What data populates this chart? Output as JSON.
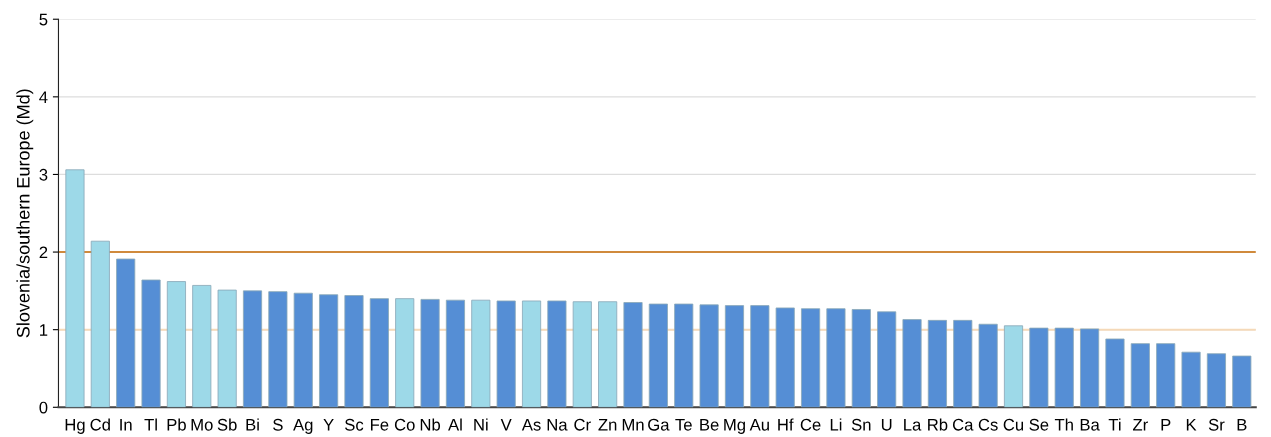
{
  "chart_data": {
    "type": "bar",
    "ylabel": "Slovenia/southern Europe (Md)",
    "categories": [
      "Hg",
      "Cd",
      "In",
      "Tl",
      "Pb",
      "Mo",
      "Sb",
      "Bi",
      "S",
      "Ag",
      "Y",
      "Sc",
      "Fe",
      "Co",
      "Nb",
      "Al",
      "Ni",
      "V",
      "As",
      "Na",
      "Cr",
      "Zn",
      "Mn",
      "Ga",
      "Te",
      "Be",
      "Mg",
      "Au",
      "Hf",
      "Ce",
      "Li",
      "Sn",
      "U",
      "La",
      "Rb",
      "Ca",
      "Cs",
      "Cu",
      "Se",
      "Th",
      "Ba",
      "Ti",
      "Zr",
      "P",
      "K",
      "Sr",
      "B"
    ],
    "values": [
      3.06,
      2.14,
      1.91,
      1.64,
      1.62,
      1.57,
      1.51,
      1.5,
      1.49,
      1.47,
      1.45,
      1.44,
      1.4,
      1.4,
      1.39,
      1.38,
      1.38,
      1.37,
      1.37,
      1.37,
      1.36,
      1.36,
      1.35,
      1.33,
      1.33,
      1.32,
      1.31,
      1.31,
      1.28,
      1.27,
      1.27,
      1.26,
      1.23,
      1.13,
      1.12,
      1.12,
      1.07,
      1.05,
      1.02,
      1.02,
      1.01,
      0.88,
      0.82,
      0.82,
      0.71,
      0.69,
      0.66
    ],
    "colors": [
      "#9dd9e8",
      "#9dd9e8",
      "#558ed5",
      "#558ed5",
      "#9dd9e8",
      "#9dd9e8",
      "#9dd9e8",
      "#558ed5",
      "#558ed5",
      "#558ed5",
      "#558ed5",
      "#558ed5",
      "#558ed5",
      "#9dd9e8",
      "#558ed5",
      "#558ed5",
      "#9dd9e8",
      "#558ed5",
      "#9dd9e8",
      "#558ed5",
      "#9dd9e8",
      "#9dd9e8",
      "#558ed5",
      "#558ed5",
      "#558ed5",
      "#558ed5",
      "#558ed5",
      "#558ed5",
      "#558ed5",
      "#558ed5",
      "#558ed5",
      "#558ed5",
      "#558ed5",
      "#558ed5",
      "#558ed5",
      "#558ed5",
      "#558ed5",
      "#9dd9e8",
      "#558ed5",
      "#558ed5",
      "#558ed5",
      "#558ed5",
      "#558ed5",
      "#558ed5",
      "#558ed5",
      "#558ed5",
      "#558ed5"
    ],
    "ylim": [
      0,
      5
    ],
    "yticks": [
      0,
      1,
      2,
      3,
      4,
      5
    ],
    "grid": "y",
    "ref_lines": [
      {
        "axis": "y",
        "value": 2,
        "color": "#d08a3c"
      },
      {
        "axis": "y",
        "value": 1,
        "color": "#f5d9b8"
      }
    ]
  }
}
